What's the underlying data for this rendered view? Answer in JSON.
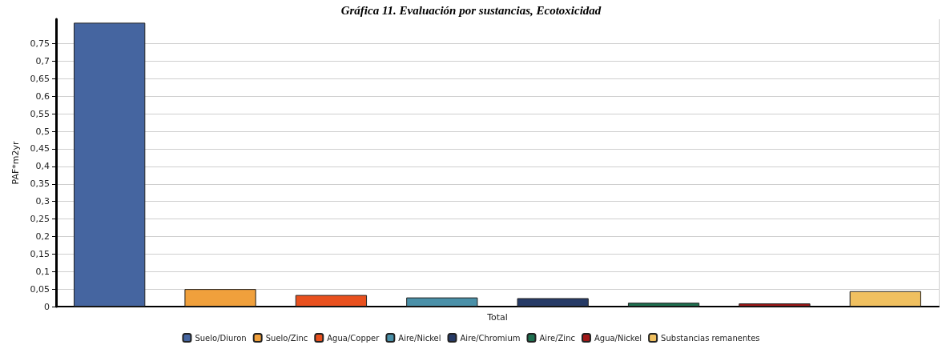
{
  "chart_data": {
    "type": "bar",
    "title": "Gráfica 11. Evaluación por sustancias, Ecotoxicidad",
    "ylabel": "PAF*m2yr",
    "categories": [
      "Total"
    ],
    "series": [
      {
        "name": "Suelo/Diuron",
        "color": "#4565a0",
        "values": [
          0.81
        ]
      },
      {
        "name": "Suelo/Zinc",
        "color": "#f0a03c",
        "values": [
          0.05
        ]
      },
      {
        "name": "Agua/Copper",
        "color": "#e8501e",
        "values": [
          0.033
        ]
      },
      {
        "name": "Aire/Nickel",
        "color": "#4a90a8",
        "values": [
          0.026
        ]
      },
      {
        "name": "Aire/Chromium",
        "color": "#263a66",
        "values": [
          0.024
        ]
      },
      {
        "name": "Aire/Zinc",
        "color": "#1e7050",
        "values": [
          0.011
        ]
      },
      {
        "name": "Agua/Nickel",
        "color": "#a01818",
        "values": [
          0.009
        ]
      },
      {
        "name": "Substancias remanentes",
        "color": "#f0c060",
        "values": [
          0.044
        ]
      }
    ],
    "ylim": [
      0,
      0.82
    ],
    "yticks": [
      {
        "value": 0,
        "label": "0"
      },
      {
        "value": 0.05,
        "label": "0,05"
      },
      {
        "value": 0.1,
        "label": "0,1"
      },
      {
        "value": 0.15,
        "label": "0,15"
      },
      {
        "value": 0.2,
        "label": "0,2"
      },
      {
        "value": 0.25,
        "label": "0,25"
      },
      {
        "value": 0.3,
        "label": "0,3"
      },
      {
        "value": 0.35,
        "label": "0,35"
      },
      {
        "value": 0.4,
        "label": "0,4"
      },
      {
        "value": 0.45,
        "label": "0,45"
      },
      {
        "value": 0.5,
        "label": "0,5"
      },
      {
        "value": 0.55,
        "label": "0,55"
      },
      {
        "value": 0.6,
        "label": "0,6"
      },
      {
        "value": 0.65,
        "label": "0,65"
      },
      {
        "value": 0.7,
        "label": "0,7"
      },
      {
        "value": 0.75,
        "label": "0,75"
      }
    ],
    "grid": true,
    "legend": "bottom"
  }
}
